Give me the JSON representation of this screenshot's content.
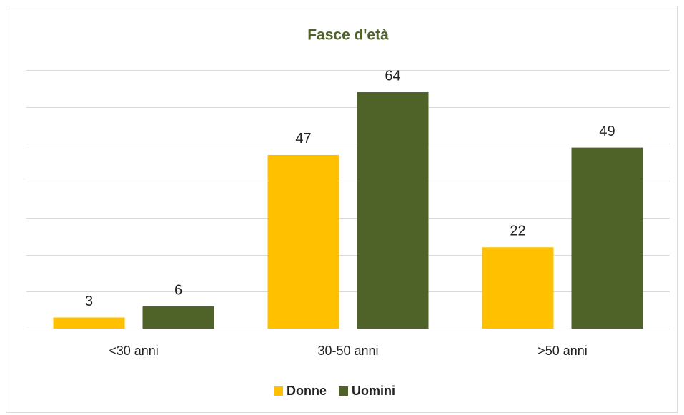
{
  "chart_data": {
    "type": "bar",
    "title": "Fasce d'età",
    "categories": [
      "<30 anni",
      "30-50 anni",
      ">50 anni"
    ],
    "series": [
      {
        "name": "Donne",
        "color": "#ffc000",
        "values": [
          3,
          47,
          22
        ]
      },
      {
        "name": "Uomini",
        "color": "#4f6228",
        "values": [
          6,
          64,
          49
        ]
      }
    ],
    "ylim": [
      0,
      70
    ],
    "yticks": [
      0,
      10,
      20,
      30,
      40,
      50,
      60,
      70
    ],
    "grid": true,
    "legend": "bottom"
  }
}
